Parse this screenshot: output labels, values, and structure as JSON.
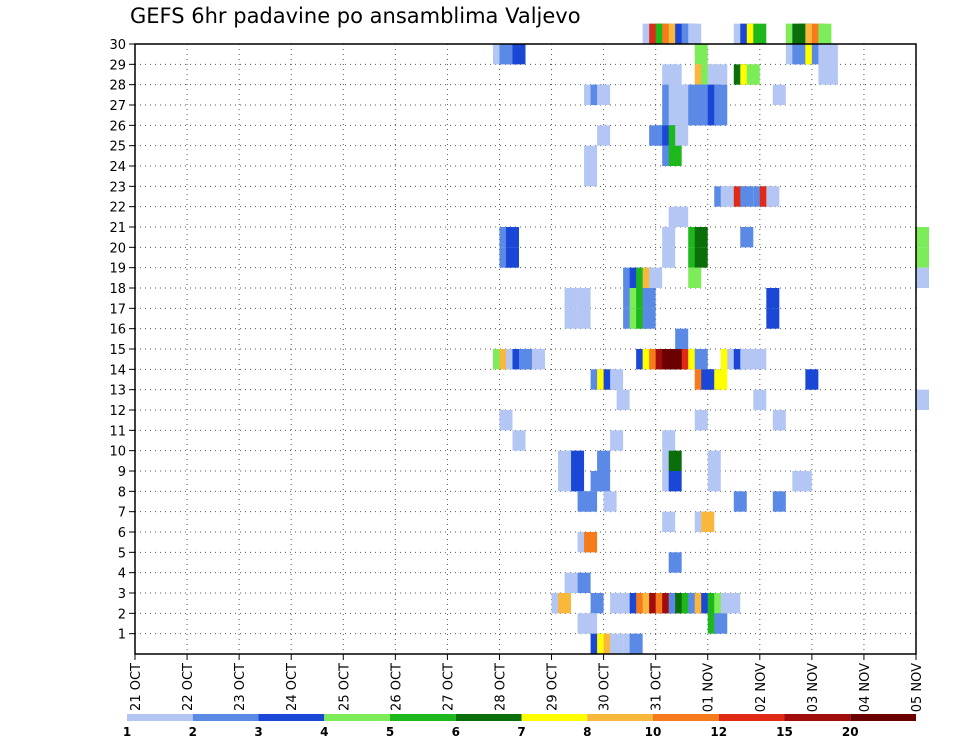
{
  "chart_data": {
    "type": "heatmap",
    "title": "GEFS 6hr padavine po ansamblima Valjevo",
    "x_ticks": [
      "21 OCT",
      "22 OCT",
      "23 OCT",
      "24 OCT",
      "25 OCT",
      "26 OCT",
      "27 OCT",
      "28 OCT",
      "29 OCT",
      "30 OCT",
      "31 OCT",
      "01 NOV",
      "02 NOV",
      "03 NOV",
      "04 NOV",
      "05 NOV"
    ],
    "y_ticks": [
      1,
      2,
      3,
      4,
      5,
      6,
      7,
      8,
      9,
      10,
      11,
      12,
      13,
      14,
      15,
      16,
      17,
      18,
      19,
      20,
      21,
      22,
      23,
      24,
      25,
      26,
      27,
      28,
      29,
      30
    ],
    "x_range": [
      "21 OCT 00z",
      "05 NOV 00z"
    ],
    "y_range": [
      0,
      30
    ],
    "time_step_hours": 6,
    "grid": "dotted",
    "colorbar": {
      "labels": [
        "1",
        "2",
        "3",
        "4",
        "5",
        "6",
        "7",
        "8",
        "10",
        "12",
        "15",
        "20"
      ],
      "colors": [
        "#b4c7f4",
        "#5a8ae6",
        "#1a47d6",
        "#7cec58",
        "#1db81c",
        "#0a6f0a",
        "#ffff00",
        "#f9b73c",
        "#f57b1c",
        "#e02a16",
        "#a10c0c",
        "#6a0000"
      ]
    },
    "cells": [
      [
        30,
        9.75,
        0
      ],
      [
        30,
        9.875,
        9
      ],
      [
        30,
        10,
        4
      ],
      [
        30,
        10.125,
        8
      ],
      [
        30,
        10.25,
        7
      ],
      [
        30,
        10.375,
        2
      ],
      [
        30,
        10.5,
        1
      ],
      [
        30,
        10.625,
        0
      ],
      [
        30,
        11.5,
        0
      ],
      [
        30,
        11.625,
        2
      ],
      [
        30,
        11.75,
        6
      ],
      [
        30,
        11.875,
        4
      ],
      [
        30,
        12.5,
        3
      ],
      [
        30,
        12.625,
        5
      ],
      [
        30,
        12.75,
        5
      ],
      [
        30,
        12.875,
        7
      ],
      [
        30,
        13,
        8
      ],
      [
        30,
        13.125,
        3
      ],
      [
        29,
        6.875,
        0
      ],
      [
        29,
        7,
        1
      ],
      [
        29,
        7.125,
        1
      ],
      [
        29,
        7.25,
        2
      ],
      [
        29,
        10.75,
        3
      ],
      [
        29,
        12.5,
        0
      ],
      [
        29,
        12.625,
        1
      ],
      [
        29,
        12.75,
        1
      ],
      [
        29,
        12.875,
        6
      ],
      [
        29,
        13,
        1
      ],
      [
        29,
        13.125,
        0
      ],
      [
        29,
        13.25,
        0
      ],
      [
        28,
        10.125,
        0
      ],
      [
        28,
        10.25,
        0
      ],
      [
        28,
        10.75,
        7
      ],
      [
        28,
        10.875,
        3
      ],
      [
        28,
        11,
        0
      ],
      [
        28,
        11.125,
        0
      ],
      [
        28,
        11.5,
        5
      ],
      [
        28,
        11.625,
        6
      ],
      [
        28,
        11.75,
        3
      ],
      [
        28,
        13.125,
        0
      ],
      [
        28,
        13.25,
        0
      ],
      [
        27,
        8.625,
        0
      ],
      [
        27,
        8.75,
        1
      ],
      [
        27,
        8.875,
        0
      ],
      [
        27,
        10.125,
        1
      ],
      [
        27,
        10.25,
        0
      ],
      [
        27,
        10.375,
        0
      ],
      [
        27,
        10.5,
        0
      ],
      [
        27,
        10.625,
        1
      ],
      [
        27,
        10.75,
        1
      ],
      [
        27,
        10.875,
        1
      ],
      [
        27,
        11,
        2
      ],
      [
        27,
        11.125,
        1
      ],
      [
        27,
        12.25,
        0
      ],
      [
        26,
        10.125,
        1
      ],
      [
        26,
        10.25,
        0
      ],
      [
        26,
        10.375,
        0
      ],
      [
        26,
        10.5,
        0
      ],
      [
        26,
        10.625,
        1
      ],
      [
        26,
        10.75,
        1
      ],
      [
        26,
        10.875,
        1
      ],
      [
        26,
        11,
        2
      ],
      [
        26,
        11.125,
        1
      ],
      [
        25,
        8.875,
        0
      ],
      [
        25,
        9.875,
        1
      ],
      [
        25,
        10,
        1
      ],
      [
        25,
        10.125,
        2
      ],
      [
        25,
        10.25,
        4
      ],
      [
        25,
        10.375,
        0
      ],
      [
        24,
        8.625,
        0
      ],
      [
        24,
        10.125,
        1
      ],
      [
        24,
        10.25,
        4
      ],
      [
        23,
        8.625,
        0
      ],
      [
        22,
        11.125,
        1
      ],
      [
        22,
        11.25,
        0
      ],
      [
        22,
        11.375,
        0
      ],
      [
        22,
        11.5,
        9
      ],
      [
        22,
        11.625,
        1
      ],
      [
        22,
        11.875,
        1
      ],
      [
        22,
        12,
        9
      ],
      [
        22,
        12.125,
        0
      ],
      [
        21,
        10.25,
        0
      ],
      [
        21,
        10.375,
        0
      ],
      [
        20,
        7,
        1
      ],
      [
        20,
        7.125,
        2
      ],
      [
        20,
        10.125,
        0
      ],
      [
        20,
        10.625,
        4
      ],
      [
        20,
        10.75,
        5
      ],
      [
        20,
        11.625,
        1
      ],
      [
        20,
        15,
        3
      ],
      [
        19,
        7,
        1
      ],
      [
        19,
        7.125,
        2
      ],
      [
        19,
        10.125,
        0
      ],
      [
        19,
        10.625,
        4
      ],
      [
        19,
        10.75,
        5
      ],
      [
        19,
        15,
        3
      ],
      [
        18,
        9.375,
        1
      ],
      [
        18,
        9.5,
        2
      ],
      [
        18,
        9.625,
        4
      ],
      [
        18,
        9.75,
        7
      ],
      [
        18,
        9.875,
        0
      ],
      [
        18,
        10.625,
        3
      ],
      [
        18,
        15,
        0
      ],
      [
        17,
        8.25,
        0
      ],
      [
        17,
        8.5,
        0
      ],
      [
        17,
        9.375,
        1
      ],
      [
        17,
        9.5,
        3
      ],
      [
        17,
        9.625,
        4
      ],
      [
        17,
        9.75,
        1
      ],
      [
        17,
        12.125,
        2
      ],
      [
        16,
        8.25,
        0
      ],
      [
        16,
        8.5,
        0
      ],
      [
        16,
        9.375,
        1
      ],
      [
        16,
        9.5,
        3
      ],
      [
        16,
        9.625,
        4
      ],
      [
        16,
        9.75,
        1
      ],
      [
        16,
        12.125,
        2
      ],
      [
        15,
        10.375,
        1
      ],
      [
        14,
        6.875,
        3
      ],
      [
        14,
        7,
        7
      ],
      [
        14,
        7.125,
        0
      ],
      [
        14,
        7.25,
        2
      ],
      [
        14,
        7.375,
        1
      ],
      [
        14,
        7.5,
        1
      ],
      [
        14,
        7.625,
        0
      ],
      [
        14,
        9.625,
        2
      ],
      [
        14,
        9.75,
        6
      ],
      [
        14,
        9.875,
        8
      ],
      [
        14,
        10,
        10
      ],
      [
        14,
        10.125,
        11
      ],
      [
        14,
        10.25,
        11
      ],
      [
        14,
        10.375,
        11
      ],
      [
        14,
        10.5,
        9
      ],
      [
        14,
        10.625,
        6
      ],
      [
        14,
        10.75,
        1
      ],
      [
        14,
        11.25,
        6
      ],
      [
        14,
        11.375,
        0
      ],
      [
        14,
        11.5,
        2
      ],
      [
        14,
        11.625,
        0
      ],
      [
        14,
        11.75,
        0
      ],
      [
        14,
        11.875,
        0
      ],
      [
        13,
        8.75,
        1
      ],
      [
        13,
        8.875,
        6
      ],
      [
        13,
        9,
        2
      ],
      [
        13,
        9.125,
        0
      ],
      [
        13,
        10.75,
        8
      ],
      [
        13,
        10.875,
        2
      ],
      [
        13,
        11,
        2
      ],
      [
        13,
        11.125,
        6
      ],
      [
        13,
        12.875,
        2
      ],
      [
        12,
        9.25,
        0
      ],
      [
        12,
        11.875,
        0
      ],
      [
        12,
        15,
        0
      ],
      [
        11,
        7,
        0
      ],
      [
        11,
        10.75,
        0
      ],
      [
        11,
        12.25,
        0
      ],
      [
        10,
        7.25,
        0
      ],
      [
        10,
        9.125,
        0
      ],
      [
        10,
        10.125,
        0
      ],
      [
        9,
        8.125,
        0
      ],
      [
        9,
        8.25,
        0
      ],
      [
        9,
        8.375,
        2
      ],
      [
        9,
        8.875,
        1
      ],
      [
        9,
        10.125,
        0
      ],
      [
        9,
        10.25,
        5
      ],
      [
        9,
        11,
        0
      ],
      [
        8,
        8.125,
        0
      ],
      [
        8,
        8.25,
        0
      ],
      [
        8,
        8.375,
        2
      ],
      [
        8,
        8.75,
        1
      ],
      [
        8,
        8.875,
        1
      ],
      [
        8,
        10.125,
        0
      ],
      [
        8,
        10.25,
        2
      ],
      [
        8,
        11,
        0
      ],
      [
        8,
        12.625,
        0
      ],
      [
        8,
        12.75,
        0
      ],
      [
        7,
        8.5,
        1
      ],
      [
        7,
        8.625,
        1
      ],
      [
        7,
        9,
        0
      ],
      [
        7,
        11.5,
        1
      ],
      [
        7,
        12.25,
        1
      ],
      [
        6,
        10.125,
        0
      ],
      [
        6,
        10.75,
        0
      ],
      [
        6,
        10.875,
        7
      ],
      [
        5,
        8.5,
        0
      ],
      [
        5,
        8.625,
        8
      ],
      [
        4,
        10.25,
        1
      ],
      [
        3,
        8.25,
        0
      ],
      [
        3,
        8.5,
        1
      ],
      [
        2,
        8,
        0
      ],
      [
        2,
        8.125,
        7
      ],
      [
        2,
        8.75,
        1
      ],
      [
        2,
        9.125,
        0
      ],
      [
        2,
        9.25,
        0
      ],
      [
        2,
        9.5,
        2
      ],
      [
        2,
        9.625,
        8
      ],
      [
        2,
        9.75,
        7
      ],
      [
        2,
        9.875,
        10
      ],
      [
        2,
        10,
        8
      ],
      [
        2,
        10.125,
        10
      ],
      [
        2,
        10.25,
        1
      ],
      [
        2,
        10.375,
        5
      ],
      [
        2,
        10.5,
        4
      ],
      [
        2,
        10.625,
        1
      ],
      [
        2,
        10.75,
        7
      ],
      [
        2,
        10.875,
        2
      ],
      [
        2,
        11,
        4
      ],
      [
        2,
        11.125,
        3
      ],
      [
        2,
        11.25,
        0
      ],
      [
        2,
        11.375,
        0
      ],
      [
        1,
        8.5,
        0
      ],
      [
        1,
        8.625,
        0
      ],
      [
        1,
        11,
        4
      ],
      [
        1,
        11.125,
        1
      ],
      [
        0,
        8.75,
        2
      ],
      [
        0,
        8.875,
        6
      ],
      [
        0,
        9,
        7
      ],
      [
        0,
        9.125,
        0
      ],
      [
        0,
        9.375,
        0
      ],
      [
        0,
        9.5,
        1
      ]
    ]
  }
}
